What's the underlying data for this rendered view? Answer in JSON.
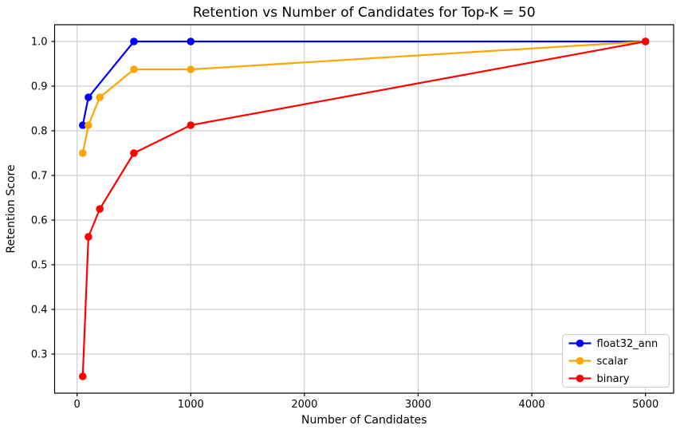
{
  "page": {
    "background": "#ffffff"
  },
  "chart_data": {
    "type": "line",
    "title": "Retention vs Number of Candidates for Top-K = 50",
    "xlabel": "Number of Candidates",
    "ylabel": "Retention Score",
    "x_ticks": [
      0,
      1000,
      2000,
      3000,
      4000,
      5000
    ],
    "x_tick_labels": [
      "0",
      "1000",
      "2000",
      "3000",
      "4000",
      "5000"
    ],
    "y_ticks": [
      0.3,
      0.4,
      0.5,
      0.6,
      0.7,
      0.8,
      0.9,
      1.0
    ],
    "y_tick_labels": [
      "0.3",
      "0.4",
      "0.5",
      "0.6",
      "0.7",
      "0.8",
      "0.9",
      "1.0"
    ],
    "xlim": [
      -197.5,
      5247.5
    ],
    "ylim": [
      0.2125,
      1.0375
    ],
    "grid": true,
    "grid_color": "#c6c6c6",
    "spine_color": "#000000",
    "legend": {
      "position": "lower right",
      "entries": [
        "float32_ann",
        "scalar",
        "binary"
      ],
      "border_color": "#cccccc",
      "background": "#ffffff"
    },
    "series": [
      {
        "name": "float32_ann",
        "color": "#0000ff",
        "marker": "circle",
        "x": [
          50,
          100,
          500,
          1000,
          5000
        ],
        "y": [
          0.8125,
          0.875,
          1.0,
          1.0,
          1.0
        ]
      },
      {
        "name": "scalar",
        "color": "#ffa500",
        "marker": "circle",
        "x": [
          50,
          100,
          200,
          500,
          1000,
          5000
        ],
        "y": [
          0.75,
          0.8125,
          0.875,
          0.9375,
          0.9375,
          1.0
        ]
      },
      {
        "name": "binary",
        "color": "#ff0000",
        "marker": "circle",
        "x": [
          50,
          100,
          200,
          500,
          1000,
          5000
        ],
        "y": [
          0.25,
          0.5625,
          0.625,
          0.75,
          0.8125,
          1.0
        ]
      }
    ]
  }
}
